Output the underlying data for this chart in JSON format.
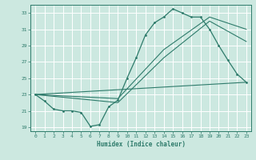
{
  "xlabel": "Humidex (Indice chaleur)",
  "xlim": [
    -0.5,
    23.5
  ],
  "ylim": [
    18.5,
    34.0
  ],
  "xticks": [
    0,
    1,
    2,
    3,
    4,
    5,
    6,
    7,
    8,
    9,
    10,
    11,
    12,
    13,
    14,
    15,
    16,
    17,
    18,
    19,
    20,
    21,
    22,
    23
  ],
  "yticks": [
    19,
    21,
    23,
    25,
    27,
    29,
    31,
    33
  ],
  "bg_color": "#cce8e0",
  "line_color": "#2e7b6b",
  "grid_color": "#ffffff",
  "main_line": {
    "x": [
      0,
      1,
      2,
      3,
      4,
      5,
      6,
      7,
      8,
      9,
      10,
      11,
      12,
      13,
      14,
      15,
      16,
      17,
      18,
      19,
      20,
      21,
      22,
      23
    ],
    "y": [
      23.0,
      22.2,
      21.2,
      21.0,
      21.0,
      20.8,
      19.1,
      19.3,
      21.5,
      22.3,
      25.0,
      27.5,
      30.3,
      31.8,
      32.5,
      33.5,
      33.0,
      32.5,
      32.5,
      31.0,
      29.0,
      27.2,
      25.5,
      24.5
    ]
  },
  "extra_lines": [
    {
      "x": [
        0,
        9,
        14,
        19,
        23
      ],
      "y": [
        23.0,
        22.5,
        28.5,
        32.5,
        31.0
      ]
    },
    {
      "x": [
        0,
        9,
        14,
        19,
        23
      ],
      "y": [
        23.0,
        22.0,
        27.5,
        32.0,
        29.5
      ]
    },
    {
      "x": [
        0,
        23
      ],
      "y": [
        23.0,
        24.5
      ]
    }
  ]
}
